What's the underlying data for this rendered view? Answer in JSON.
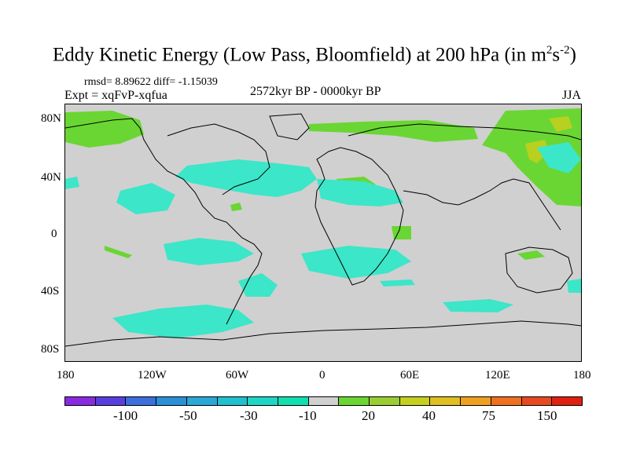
{
  "title": {
    "main": "Eddy Kinetic Energy (Low Pass, Bloomfield) at 200 hPa (in m",
    "sup1": "2",
    "mid": "s",
    "sup2": "-2",
    "end": ")"
  },
  "subtitle": {
    "stats": "rmsd= 8.89622 diff= -1.15039",
    "expt": "Expt = xqFvP-xqfua",
    "period": "2572kyr BP - 0000kyr BP",
    "season": "JJA"
  },
  "map": {
    "background_color": "#d0d0d0",
    "lat_ticks": [
      "80N",
      "40N",
      "0",
      "40S",
      "80S"
    ],
    "lon_ticks": [
      "180",
      "120W",
      "60W",
      "0",
      "60E",
      "120E",
      "180"
    ]
  },
  "colorbar": {
    "colors": [
      "#8a2be2",
      "#5a3fe0",
      "#3a6fdc",
      "#2b8fd8",
      "#2aa8d6",
      "#20c0d0",
      "#1dd6c6",
      "#10e0b0",
      "#d0d0d0",
      "#6ad633",
      "#9acd32",
      "#c5d01e",
      "#e0c020",
      "#f0a020",
      "#f07020",
      "#e84a20",
      "#e02010"
    ],
    "labels": [
      "-100",
      "-50",
      "-30",
      "-10",
      "20",
      "40",
      "75",
      "150"
    ]
  },
  "legend_colors": {
    "negative_light": "#3ce6c8",
    "negative_mid": "#2ad8c2",
    "positive_light": "#6ad633",
    "positive_yellow": "#b8d020"
  }
}
